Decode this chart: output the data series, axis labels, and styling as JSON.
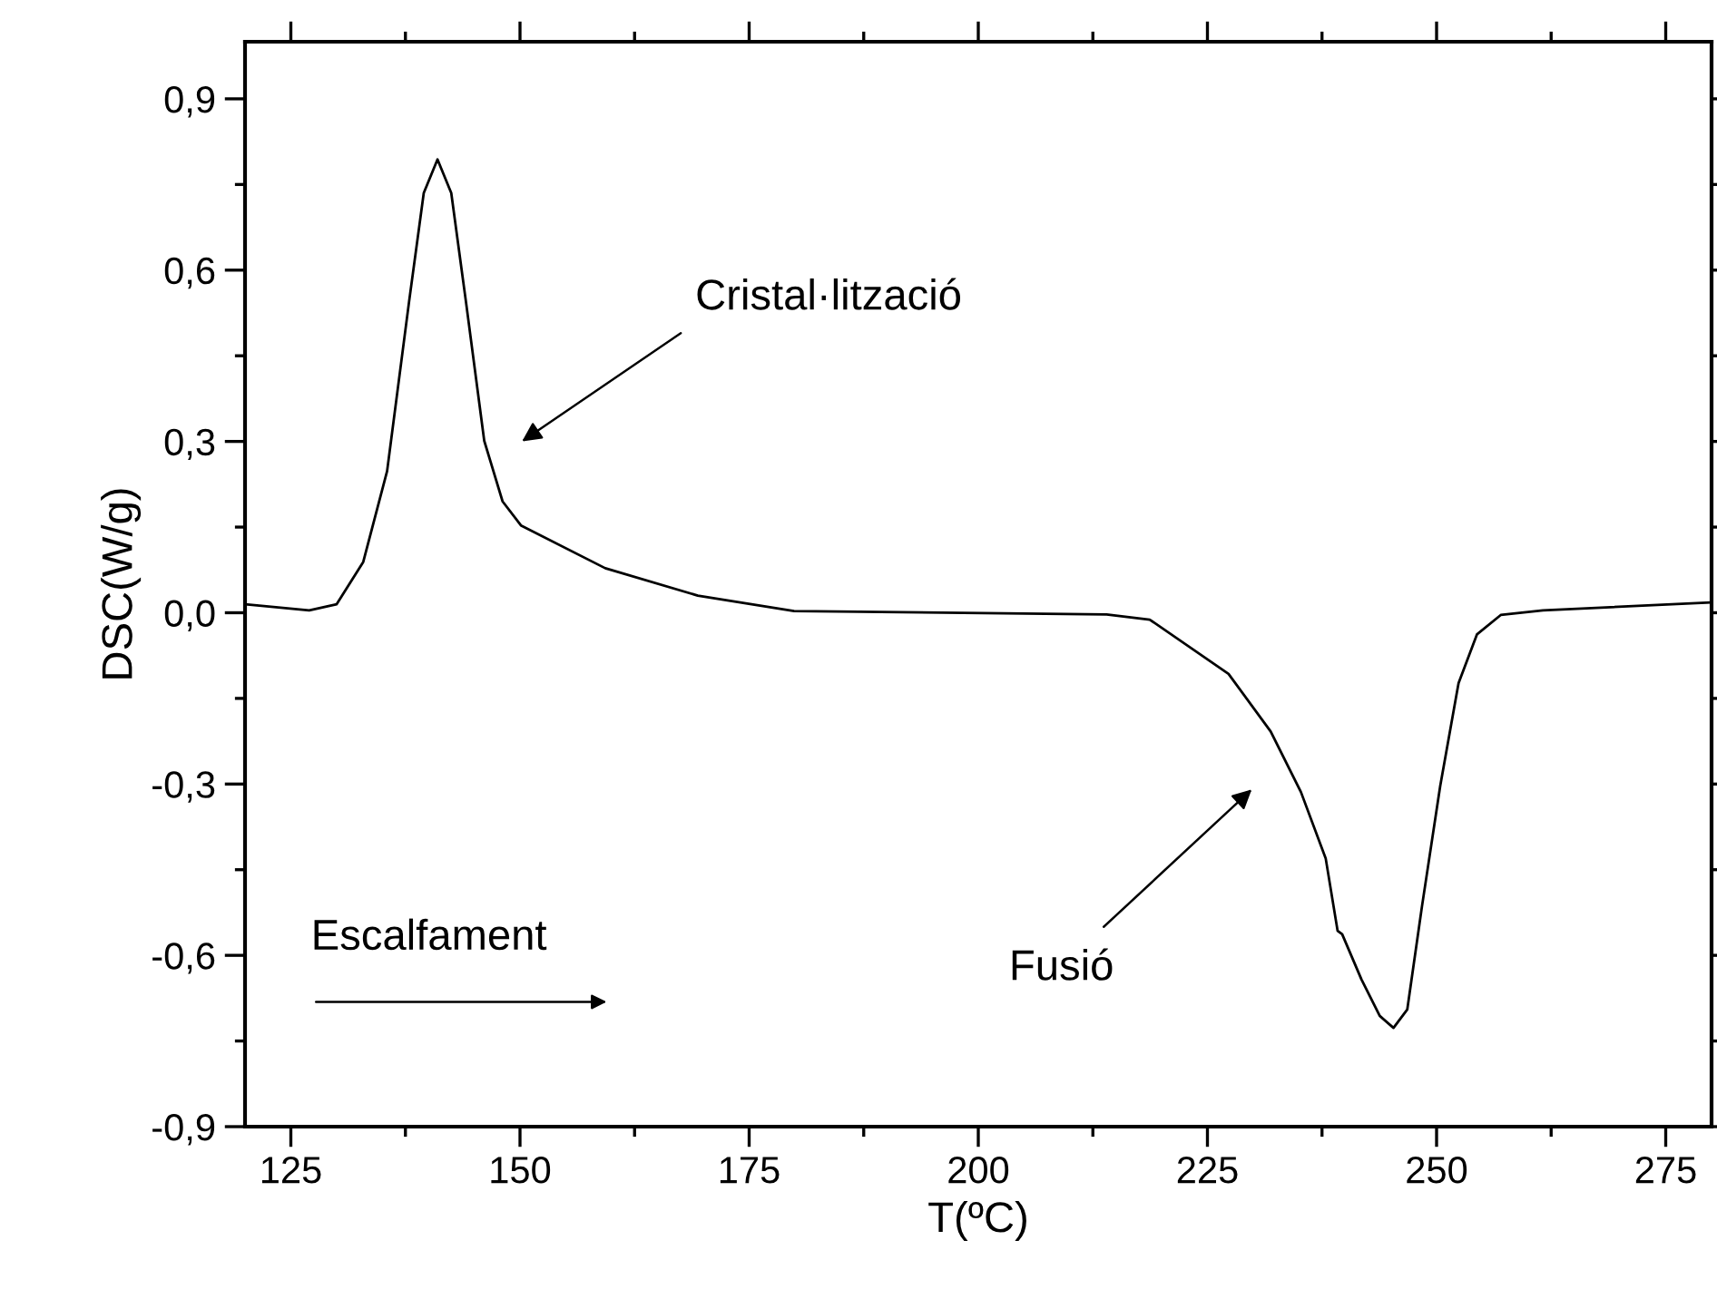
{
  "chart_data": {
    "type": "line",
    "xlabel": "T(ºC)",
    "ylabel": "DSC(W/g)",
    "xlim": [
      120,
      280
    ],
    "xticks": [
      125,
      150,
      175,
      200,
      225,
      250,
      275
    ],
    "ylim": [
      -0.9,
      1.0
    ],
    "yticks": [
      {
        "value": -0.9,
        "label": "-0,9"
      },
      {
        "value": -0.6,
        "label": "-0,6"
      },
      {
        "value": -0.3,
        "label": "-0,3"
      },
      {
        "value": 0,
        "label": "0,0"
      },
      {
        "value": 0.3,
        "label": "0,3"
      },
      {
        "value": 0.6,
        "label": "0,6"
      },
      {
        "value": 0.9,
        "label": "0,9"
      }
    ],
    "grid": false,
    "legend": false,
    "marker": "none",
    "line_style": "solid",
    "series": [
      {
        "color": "#000000",
        "x": [
          120,
          127,
          130,
          132.9,
          135.5,
          137.9,
          139.5,
          141,
          142.5,
          144.1,
          146.1,
          148.1,
          150.1,
          159.3,
          169.4,
          179.9,
          214,
          218.7,
          227.3,
          231.9,
          235.2,
          237.9,
          239.2,
          239.7,
          241.8,
          243.8,
          245.3,
          246.8,
          248.4,
          250.4,
          252.4,
          254.4,
          257,
          261.6,
          279.8
        ],
        "values": [
          0.015,
          0.004,
          0.015,
          0.089,
          0.248,
          0.545,
          0.735,
          0.794,
          0.735,
          0.545,
          0.301,
          0.195,
          0.153,
          0.078,
          0.03,
          0.003,
          -0.003,
          -0.012,
          -0.107,
          -0.208,
          -0.314,
          -0.43,
          -0.557,
          -0.563,
          -0.642,
          -0.706,
          -0.727,
          -0.695,
          -0.515,
          -0.303,
          -0.123,
          -0.038,
          -0.004,
          0.004,
          0.018
        ]
      }
    ],
    "annotations": [
      "Cristal·lització",
      "Fusió",
      "Escalfament"
    ]
  }
}
